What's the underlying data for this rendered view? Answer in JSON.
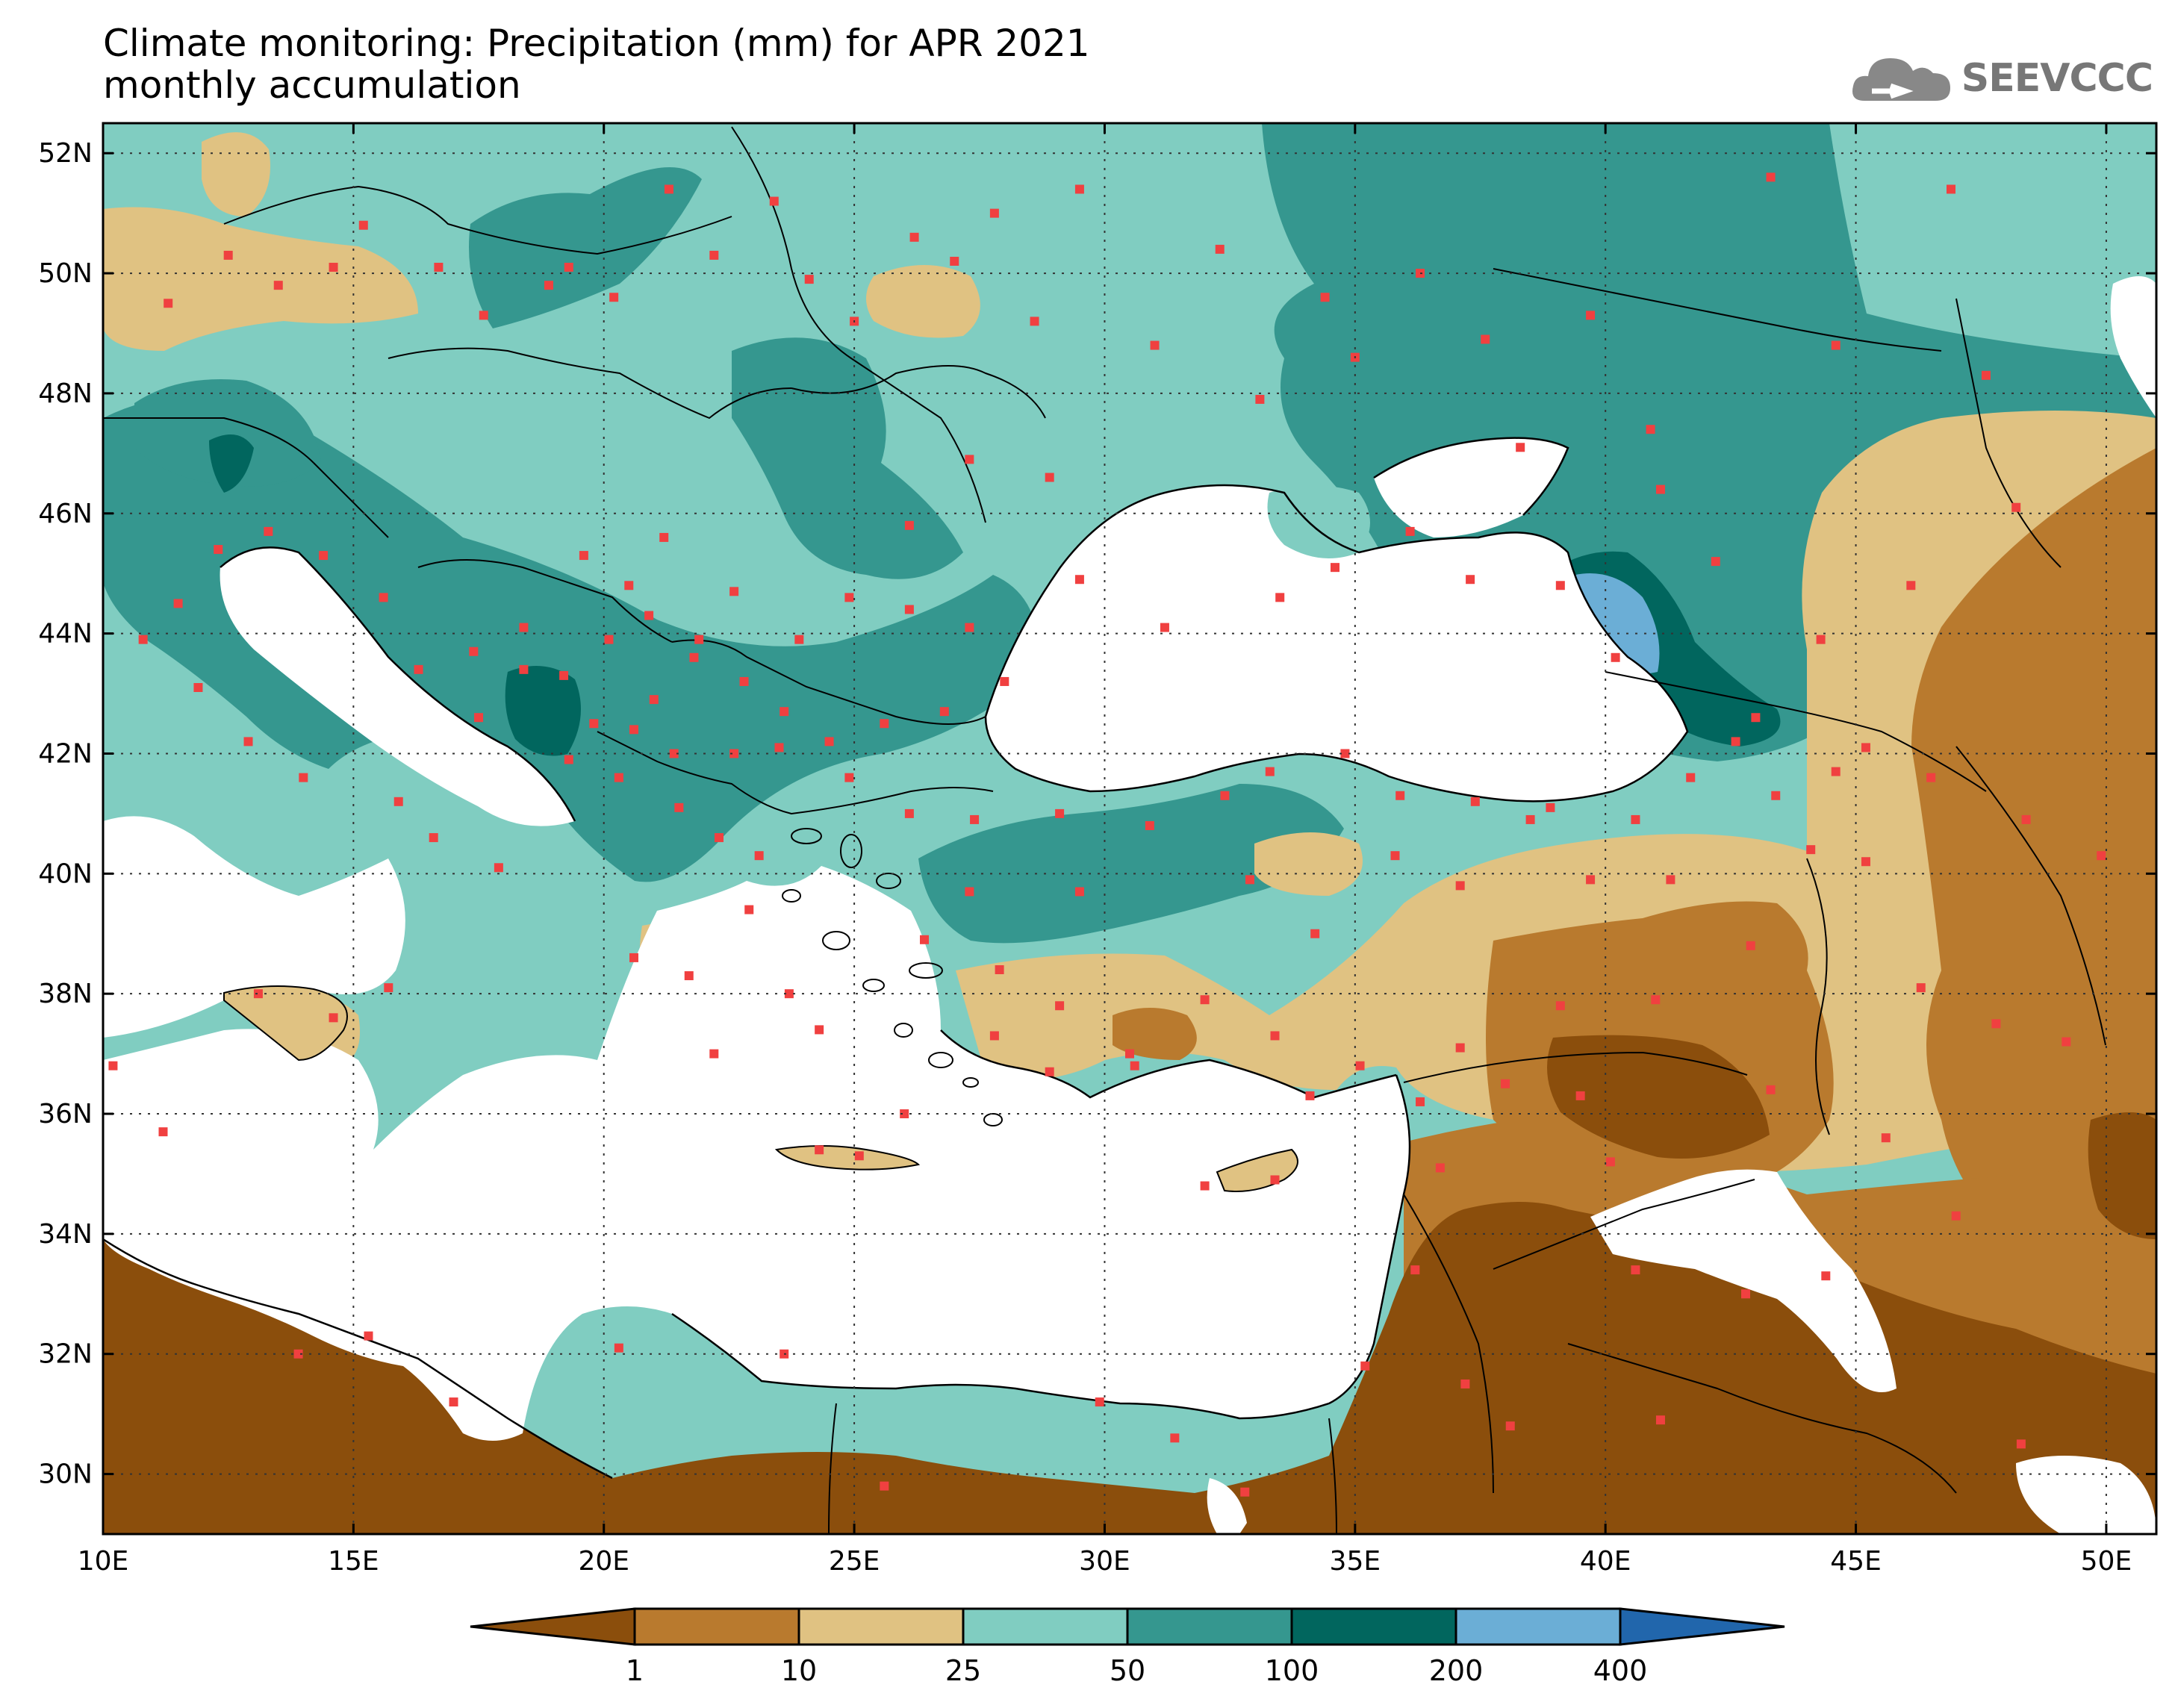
{
  "title_line1": "Climate monitoring: Precipitation (mm) for APR 2021",
  "title_line2": "monthly accumulation",
  "logo_text": "SEEVCCC",
  "map": {
    "lon_min": 10,
    "lon_max": 51,
    "lat_min": 29,
    "lat_max": 52.5,
    "lon_ticks": [
      "10E",
      "15E",
      "20E",
      "25E",
      "30E",
      "35E",
      "40E",
      "45E",
      "50E"
    ],
    "lat_ticks": [
      "52N",
      "50N",
      "48N",
      "46N",
      "44N",
      "42N",
      "40N",
      "38N",
      "36N",
      "34N",
      "32N",
      "30N"
    ],
    "lon_values": [
      10,
      15,
      20,
      25,
      30,
      35,
      40,
      45,
      50
    ],
    "lat_values": [
      52,
      50,
      48,
      46,
      44,
      42,
      40,
      38,
      36,
      34,
      32,
      30
    ]
  },
  "colorbar": {
    "labels": [
      "1",
      "10",
      "25",
      "50",
      "100",
      "200",
      "400"
    ],
    "colors": [
      "#8b4e0c",
      "#b97a2e",
      "#e0c282",
      "#80cdc1",
      "#35978f",
      "#01665e",
      "#6baed6",
      "#2166ac"
    ]
  },
  "colors": {
    "water": "#ffffff",
    "very_dry": "#8b4e0c",
    "dry": "#b97a2e",
    "light": "#e0c282",
    "moderate": "#80cdc1",
    "wet": "#35978f",
    "very_wet": "#01665e",
    "extreme": "#6baed6",
    "station": "#f04040"
  },
  "stations": [
    [
      11.3,
      49.5
    ],
    [
      12.5,
      50.3
    ],
    [
      13.5,
      49.8
    ],
    [
      14.6,
      50.1
    ],
    [
      15.2,
      50.8
    ],
    [
      16.7,
      50.1
    ],
    [
      17.6,
      49.3
    ],
    [
      18.9,
      49.8
    ],
    [
      19.3,
      50.1
    ],
    [
      20.2,
      49.6
    ],
    [
      21.3,
      51.4
    ],
    [
      22.2,
      50.3
    ],
    [
      23.4,
      51.2
    ],
    [
      24.1,
      49.9
    ],
    [
      25.0,
      49.2
    ],
    [
      26.2,
      50.6
    ],
    [
      27.0,
      50.2
    ],
    [
      27.8,
      51.0
    ],
    [
      28.6,
      49.2
    ],
    [
      29.5,
      51.4
    ],
    [
      31.0,
      48.8
    ],
    [
      32.3,
      50.4
    ],
    [
      33.1,
      47.9
    ],
    [
      34.4,
      49.6
    ],
    [
      35.0,
      48.6
    ],
    [
      36.3,
      50.0
    ],
    [
      37.6,
      48.9
    ],
    [
      38.3,
      47.1
    ],
    [
      39.7,
      49.3
    ],
    [
      40.9,
      47.4
    ],
    [
      41.1,
      46.4
    ],
    [
      42.2,
      45.2
    ],
    [
      43.3,
      51.6
    ],
    [
      44.6,
      48.8
    ],
    [
      46.9,
      51.4
    ],
    [
      47.6,
      48.3
    ],
    [
      48.2,
      46.1
    ],
    [
      46.1,
      44.8
    ],
    [
      44.3,
      43.9
    ],
    [
      43.0,
      42.6
    ],
    [
      40.2,
      43.6
    ],
    [
      39.1,
      44.8
    ],
    [
      37.3,
      44.9
    ],
    [
      36.1,
      45.7
    ],
    [
      34.6,
      45.1
    ],
    [
      33.5,
      44.6
    ],
    [
      31.2,
      44.1
    ],
    [
      29.5,
      44.9
    ],
    [
      28.9,
      46.6
    ],
    [
      27.3,
      46.9
    ],
    [
      26.1,
      45.8
    ],
    [
      24.9,
      44.6
    ],
    [
      23.9,
      43.9
    ],
    [
      22.6,
      44.7
    ],
    [
      21.2,
      45.6
    ],
    [
      20.5,
      44.8
    ],
    [
      19.6,
      45.3
    ],
    [
      18.4,
      44.1
    ],
    [
      17.4,
      43.7
    ],
    [
      16.3,
      43.4
    ],
    [
      15.6,
      44.6
    ],
    [
      14.4,
      45.3
    ],
    [
      13.3,
      45.7
    ],
    [
      12.3,
      45.4
    ],
    [
      11.5,
      44.5
    ],
    [
      10.8,
      43.9
    ],
    [
      11.9,
      43.1
    ],
    [
      12.9,
      42.2
    ],
    [
      14.0,
      41.6
    ],
    [
      15.9,
      41.2
    ],
    [
      16.6,
      40.6
    ],
    [
      17.9,
      40.1
    ],
    [
      15.7,
      38.1
    ],
    [
      14.6,
      37.6
    ],
    [
      13.1,
      38.0
    ],
    [
      10.2,
      36.8
    ],
    [
      11.2,
      35.7
    ],
    [
      13.9,
      32.0
    ],
    [
      15.3,
      32.3
    ],
    [
      17.0,
      31.2
    ],
    [
      20.3,
      32.1
    ],
    [
      23.6,
      32.0
    ],
    [
      25.6,
      29.8
    ],
    [
      29.9,
      31.2
    ],
    [
      31.4,
      30.6
    ],
    [
      32.8,
      29.7
    ],
    [
      35.2,
      31.8
    ],
    [
      36.2,
      33.4
    ],
    [
      37.2,
      31.5
    ],
    [
      38.1,
      30.8
    ],
    [
      40.6,
      33.4
    ],
    [
      41.1,
      30.9
    ],
    [
      42.8,
      33.0
    ],
    [
      44.4,
      33.3
    ],
    [
      47.0,
      34.3
    ],
    [
      48.3,
      30.5
    ],
    [
      45.6,
      35.6
    ],
    [
      43.3,
      36.4
    ],
    [
      41.0,
      37.9
    ],
    [
      39.1,
      37.8
    ],
    [
      37.1,
      37.1
    ],
    [
      35.1,
      36.8
    ],
    [
      33.4,
      37.3
    ],
    [
      32.0,
      37.9
    ],
    [
      30.5,
      37.0
    ],
    [
      29.1,
      37.8
    ],
    [
      27.9,
      38.4
    ],
    [
      26.4,
      38.9
    ],
    [
      27.3,
      39.7
    ],
    [
      29.5,
      39.7
    ],
    [
      30.9,
      40.8
    ],
    [
      32.9,
      39.9
    ],
    [
      34.2,
      39.0
    ],
    [
      35.8,
      40.3
    ],
    [
      37.1,
      39.8
    ],
    [
      38.5,
      40.9
    ],
    [
      39.7,
      39.9
    ],
    [
      41.3,
      39.9
    ],
    [
      42.9,
      38.8
    ],
    [
      44.1,
      40.4
    ],
    [
      45.2,
      40.2
    ],
    [
      46.3,
      38.1
    ],
    [
      47.8,
      37.5
    ],
    [
      49.2,
      37.2
    ],
    [
      48.4,
      40.9
    ],
    [
      49.9,
      40.3
    ],
    [
      46.5,
      41.6
    ],
    [
      45.2,
      42.1
    ],
    [
      44.6,
      41.7
    ],
    [
      43.4,
      41.3
    ],
    [
      42.6,
      42.2
    ],
    [
      41.7,
      41.6
    ],
    [
      40.6,
      40.9
    ],
    [
      38.9,
      41.1
    ],
    [
      37.4,
      41.2
    ],
    [
      35.9,
      41.3
    ],
    [
      34.8,
      42.0
    ],
    [
      33.3,
      41.7
    ],
    [
      32.4,
      41.3
    ],
    [
      29.1,
      41.0
    ],
    [
      27.4,
      40.9
    ],
    [
      26.1,
      41.0
    ],
    [
      24.9,
      41.6
    ],
    [
      23.6,
      42.7
    ],
    [
      22.8,
      43.2
    ],
    [
      21.8,
      43.6
    ],
    [
      21.0,
      42.9
    ],
    [
      20.6,
      42.4
    ],
    [
      19.8,
      42.5
    ],
    [
      19.3,
      41.9
    ],
    [
      20.3,
      41.6
    ],
    [
      21.5,
      41.1
    ],
    [
      22.3,
      40.6
    ],
    [
      23.1,
      40.3
    ],
    [
      22.9,
      39.4
    ],
    [
      23.7,
      38.0
    ],
    [
      24.3,
      37.4
    ],
    [
      22.2,
      37.0
    ],
    [
      21.7,
      38.3
    ],
    [
      20.6,
      38.6
    ],
    [
      25.1,
      35.3
    ],
    [
      24.3,
      35.4
    ],
    [
      26.0,
      36.0
    ],
    [
      27.8,
      37.3
    ],
    [
      28.9,
      36.7
    ],
    [
      30.6,
      36.8
    ],
    [
      32.0,
      34.8
    ],
    [
      33.4,
      34.9
    ],
    [
      34.1,
      36.3
    ],
    [
      36.3,
      36.2
    ],
    [
      36.7,
      35.1
    ],
    [
      38.0,
      36.5
    ],
    [
      39.5,
      36.3
    ],
    [
      40.1,
      35.2
    ],
    [
      17.5,
      42.6
    ],
    [
      18.4,
      43.4
    ],
    [
      19.2,
      43.3
    ],
    [
      20.1,
      43.9
    ],
    [
      20.9,
      44.3
    ],
    [
      21.9,
      43.9
    ],
    [
      22.6,
      42.0
    ],
    [
      21.4,
      42.0
    ],
    [
      23.5,
      42.1
    ],
    [
      24.5,
      42.2
    ],
    [
      25.6,
      42.5
    ],
    [
      26.8,
      42.7
    ],
    [
      28.0,
      43.2
    ],
    [
      27.3,
      44.1
    ],
    [
      26.1,
      44.4
    ]
  ]
}
